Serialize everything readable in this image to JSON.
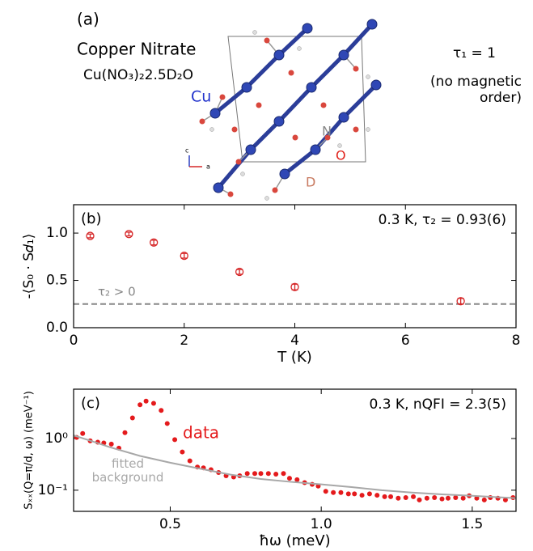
{
  "panel_a": {
    "label": "(a)",
    "title": "Copper Nitrate",
    "formula": "Cu(NO₃)₂2.5D₂O",
    "tau": "τ₁ = 1",
    "note": "(no magnetic order)",
    "atom_cu": "Cu",
    "atom_n": "N",
    "atom_o": "O",
    "atom_d": "D",
    "axis_c": "c",
    "axis_a": "a"
  },
  "chart_data": [
    {
      "type": "scatter",
      "panel_label": "(b)",
      "annotation": "0.3 K,  τ₂ = 0.93(6)",
      "x_label": "T (K)",
      "y_label": "-⟨S₀ · S𝑑₁⟩",
      "xlim": [
        0,
        8
      ],
      "xticks": [
        0,
        2,
        4,
        6,
        8
      ],
      "ylim": [
        0,
        1.3
      ],
      "yticks": [
        {
          "value": 0,
          "label": "0.0"
        },
        0.5,
        {
          "value": 1,
          "label": "1.0"
        }
      ],
      "log_y": false,
      "series": [
        {
          "color": "#d62728",
          "marker": "open-circle",
          "x": [
            0.3,
            1,
            1.45,
            2,
            3,
            4,
            7
          ],
          "values": [
            0.97,
            0.99,
            0.9,
            0.76,
            0.59,
            0.43,
            0.28
          ],
          "errors": [
            0.02,
            0.02,
            0.025,
            0.025,
            0.025,
            0.03,
            0.03
          ]
        }
      ],
      "hline": {
        "value": 0.25,
        "label": "τ₂ > 0",
        "color": "#888888"
      }
    },
    {
      "type": "scatter",
      "panel_label": "(c)",
      "annotation": "0.3 K,  nQFI = 2.3(5)",
      "x_label": "ħω (meV)",
      "y_label": "Sₓₓ(Q=π/d, ω) (meV⁻¹)",
      "xlim": [
        0.18,
        1.645
      ],
      "xticks": [
        0.5,
        {
          "value": 1,
          "label": "1.0"
        },
        1.5
      ],
      "ylim": [
        0.039,
        9
      ],
      "yticks": [
        {
          "value": 1,
          "label": "10⁰"
        },
        {
          "value": 0.1,
          "label": "10⁻¹"
        }
      ],
      "log_y": true,
      "series": [
        {
          "name": "data",
          "color": "#e41a1c",
          "marker": "dot",
          "x": [
            0.19,
            0.21,
            0.235,
            0.26,
            0.28,
            0.305,
            0.33,
            0.35,
            0.375,
            0.4,
            0.42,
            0.445,
            0.47,
            0.49,
            0.515,
            0.54,
            0.565,
            0.59,
            0.61,
            0.635,
            0.66,
            0.685,
            0.71,
            0.73,
            0.755,
            0.78,
            0.8,
            0.825,
            0.85,
            0.875,
            0.895,
            0.92,
            0.945,
            0.97,
            0.99,
            1.015,
            1.04,
            1.065,
            1.09,
            1.11,
            1.135,
            1.16,
            1.185,
            1.21,
            1.23,
            1.255,
            1.28,
            1.305,
            1.325,
            1.35,
            1.375,
            1.4,
            1.42,
            1.445,
            1.47,
            1.49,
            1.515,
            1.54,
            1.56,
            1.585,
            1.61,
            1.635
          ],
          "values": [
            1.05,
            1.25,
            0.9,
            0.85,
            0.82,
            0.78,
            0.65,
            1.3,
            2.5,
            4.5,
            5.3,
            4.8,
            3.5,
            1.95,
            0.95,
            0.55,
            0.37,
            0.28,
            0.27,
            0.25,
            0.22,
            0.19,
            0.18,
            0.19,
            0.21,
            0.21,
            0.21,
            0.21,
            0.205,
            0.21,
            0.17,
            0.16,
            0.14,
            0.13,
            0.12,
            0.095,
            0.09,
            0.09,
            0.085,
            0.085,
            0.08,
            0.085,
            0.08,
            0.075,
            0.075,
            0.07,
            0.072,
            0.075,
            0.065,
            0.07,
            0.072,
            0.068,
            0.07,
            0.072,
            0.07,
            0.078,
            0.07,
            0.065,
            0.072,
            0.07,
            0.065,
            0.072
          ]
        },
        {
          "name": "fitted background",
          "color": "#a8a8a8",
          "marker": "line",
          "x": [
            0.18,
            0.25,
            0.3,
            0.4,
            0.5,
            0.6,
            0.7,
            0.8,
            0.9,
            1.0,
            1.1,
            1.2,
            1.3,
            1.4,
            1.5,
            1.645
          ],
          "values": [
            1.15,
            0.85,
            0.68,
            0.46,
            0.34,
            0.26,
            0.2,
            0.165,
            0.145,
            0.13,
            0.115,
            0.1,
            0.09,
            0.083,
            0.078,
            0.07
          ]
        }
      ]
    }
  ]
}
